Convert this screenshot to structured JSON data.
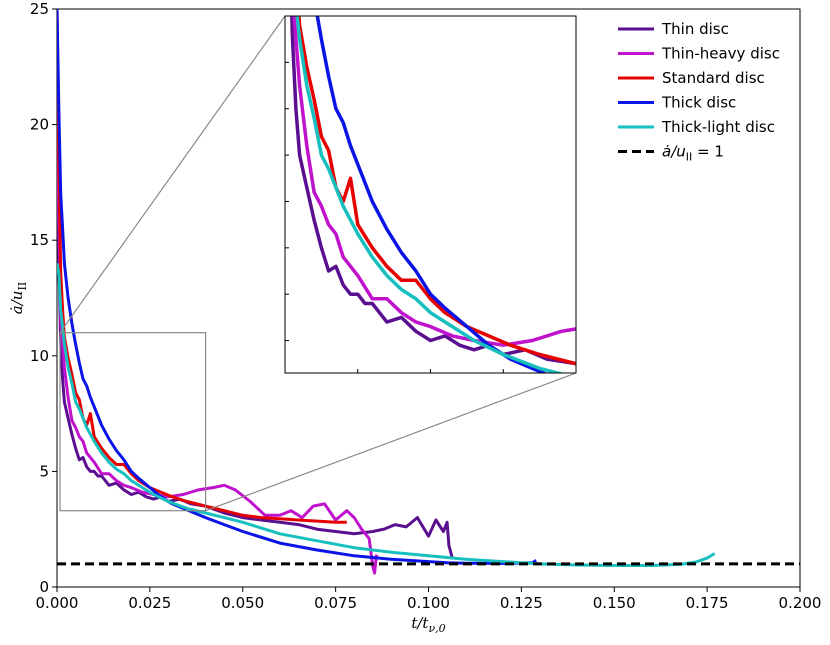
{
  "chart_data": {
    "type": "line",
    "title": "",
    "xlabel": "t/t_ν,0",
    "ylabel": "ȧ/u_II",
    "xlim": [
      0,
      0.2
    ],
    "ylim": [
      0,
      25
    ],
    "xticks": [
      "0.000",
      "0.025",
      "0.050",
      "0.075",
      "0.100",
      "0.125",
      "0.150",
      "0.175",
      "0.200"
    ],
    "yticks": [
      "0",
      "5",
      "10",
      "15",
      "20",
      "25"
    ],
    "legend_position": "top-right",
    "inset": {
      "xlim": [
        0.0,
        0.04
      ],
      "ylim": [
        3.3,
        11.0
      ],
      "placement": "top-center"
    },
    "reference_line": {
      "name": "ȧ/u_II = 1",
      "y": 1,
      "color": "#000000",
      "style": "dashed"
    },
    "series": [
      {
        "name": "Thin disc",
        "color": "#5a0f91",
        "x": [
          0.0,
          0.0005,
          0.001,
          0.0015,
          0.002,
          0.003,
          0.004,
          0.005,
          0.006,
          0.007,
          0.008,
          0.009,
          0.01,
          0.011,
          0.012,
          0.014,
          0.016,
          0.018,
          0.02,
          0.022,
          0.024,
          0.026,
          0.028,
          0.03,
          0.033,
          0.036,
          0.04,
          0.045,
          0.05,
          0.055,
          0.06,
          0.065,
          0.07,
          0.075,
          0.08,
          0.085,
          0.088,
          0.091,
          0.094,
          0.097,
          0.1,
          0.102,
          0.104,
          0.105,
          0.1055,
          0.1065
        ],
        "y": [
          25.0,
          14.0,
          10.6,
          9.0,
          8.0,
          7.3,
          6.6,
          6.0,
          5.5,
          5.6,
          5.2,
          5.0,
          5.0,
          4.8,
          4.8,
          4.4,
          4.5,
          4.2,
          4.0,
          4.1,
          3.9,
          3.8,
          3.9,
          3.7,
          3.8,
          3.6,
          3.5,
          3.2,
          3.0,
          2.9,
          2.8,
          2.7,
          2.5,
          2.4,
          2.3,
          2.4,
          2.5,
          2.7,
          2.6,
          3.0,
          2.2,
          2.9,
          2.4,
          2.8,
          1.8,
          1.2
        ]
      },
      {
        "name": "Thin-heavy disc",
        "color": "#c012cc",
        "x": [
          0.0,
          0.0005,
          0.001,
          0.002,
          0.003,
          0.004,
          0.005,
          0.006,
          0.007,
          0.008,
          0.01,
          0.012,
          0.014,
          0.016,
          0.018,
          0.02,
          0.023,
          0.026,
          0.03,
          0.034,
          0.038,
          0.042,
          0.045,
          0.048,
          0.052,
          0.056,
          0.06,
          0.063,
          0.066,
          0.069,
          0.072,
          0.075,
          0.078,
          0.08,
          0.082,
          0.084,
          0.085,
          0.0855,
          0.086
        ],
        "y": [
          24.0,
          16.0,
          11.5,
          9.5,
          8.2,
          7.2,
          6.9,
          6.5,
          6.3,
          5.8,
          5.4,
          4.9,
          4.9,
          4.6,
          4.4,
          4.3,
          4.1,
          4.0,
          3.9,
          4.0,
          4.2,
          4.3,
          4.4,
          4.2,
          3.7,
          3.1,
          3.1,
          3.3,
          3.0,
          3.5,
          3.6,
          2.9,
          3.3,
          3.0,
          2.5,
          2.1,
          0.9,
          0.6,
          1.4
        ]
      },
      {
        "name": "Standard disc",
        "color": "#e60000",
        "x": [
          0.0,
          0.0005,
          0.001,
          0.0015,
          0.002,
          0.003,
          0.004,
          0.005,
          0.006,
          0.007,
          0.008,
          0.009,
          0.01,
          0.012,
          0.014,
          0.016,
          0.018,
          0.02,
          0.022,
          0.025,
          0.028,
          0.031,
          0.035,
          0.04,
          0.045,
          0.05,
          0.055,
          0.06,
          0.065,
          0.07,
          0.075,
          0.078
        ],
        "y": [
          25.0,
          18.0,
          13.6,
          12.0,
          10.8,
          9.9,
          9.2,
          8.4,
          8.1,
          7.3,
          7.0,
          7.5,
          6.5,
          6.0,
          5.6,
          5.3,
          5.3,
          4.9,
          4.6,
          4.3,
          4.1,
          3.9,
          3.7,
          3.5,
          3.3,
          3.1,
          3.0,
          2.95,
          2.9,
          2.85,
          2.8,
          2.8
        ]
      },
      {
        "name": "Thick disc",
        "color": "#0a14e6",
        "x": [
          0.0,
          0.0005,
          0.001,
          0.0015,
          0.002,
          0.003,
          0.004,
          0.005,
          0.006,
          0.007,
          0.008,
          0.009,
          0.01,
          0.012,
          0.014,
          0.016,
          0.018,
          0.02,
          0.022,
          0.025,
          0.028,
          0.031,
          0.034,
          0.037,
          0.04,
          0.045,
          0.05,
          0.06,
          0.07,
          0.08,
          0.09,
          0.1,
          0.105,
          0.11,
          0.12,
          0.128,
          0.129
        ],
        "y": [
          25.0,
          20.5,
          17.0,
          15.5,
          14.0,
          12.5,
          11.4,
          10.5,
          9.7,
          9.0,
          8.7,
          8.2,
          7.8,
          7.0,
          6.4,
          5.9,
          5.5,
          5.0,
          4.7,
          4.3,
          3.9,
          3.6,
          3.4,
          3.2,
          3.0,
          2.7,
          2.4,
          1.9,
          1.6,
          1.35,
          1.2,
          1.1,
          1.05,
          1.03,
          1.02,
          1.05,
          1.15
        ]
      },
      {
        "name": "Thick-light disc",
        "color": "#17bfbf",
        "x": [
          0.0,
          0.0005,
          0.001,
          0.002,
          0.003,
          0.004,
          0.005,
          0.006,
          0.007,
          0.008,
          0.01,
          0.012,
          0.014,
          0.016,
          0.018,
          0.02,
          0.023,
          0.026,
          0.03,
          0.035,
          0.04,
          0.045,
          0.05,
          0.06,
          0.07,
          0.08,
          0.09,
          0.1,
          0.11,
          0.12,
          0.13,
          0.14,
          0.15,
          0.16,
          0.168,
          0.172,
          0.175,
          0.177
        ],
        "y": [
          14.0,
          13.5,
          12.0,
          10.5,
          9.5,
          8.8,
          8.0,
          7.7,
          7.3,
          6.9,
          6.3,
          5.8,
          5.4,
          5.1,
          4.9,
          4.6,
          4.3,
          4.0,
          3.7,
          3.4,
          3.2,
          3.0,
          2.8,
          2.3,
          2.0,
          1.7,
          1.5,
          1.35,
          1.2,
          1.1,
          1.0,
          0.95,
          0.93,
          0.93,
          0.98,
          1.08,
          1.25,
          1.45
        ]
      }
    ]
  }
}
